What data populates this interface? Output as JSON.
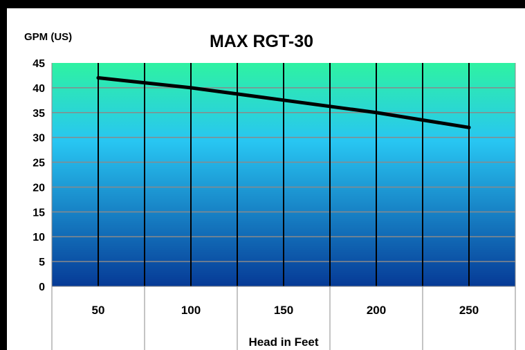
{
  "chart_data": {
    "type": "line",
    "title": "MAX RGT-30",
    "ylabel": "GPM (US)",
    "xlabel": "Head in Feet",
    "x_ticks": [
      "50",
      "100",
      "150",
      "200",
      "250"
    ],
    "y_ticks": [
      "0",
      "5",
      "10",
      "15",
      "20",
      "25",
      "30",
      "35",
      "40",
      "45"
    ],
    "xlim": [
      25,
      275
    ],
    "ylim": [
      0,
      45
    ],
    "grid": true,
    "legend": "none",
    "series": [
      {
        "values": [
          [
            50,
            42
          ],
          [
            100,
            40
          ],
          [
            150,
            37.5
          ],
          [
            200,
            35
          ],
          [
            250,
            32
          ]
        ]
      }
    ],
    "colors": {
      "frame": "#000000",
      "background": "#ffffff",
      "gradient_top": "#2ef2a2",
      "gradient_mid": "#28c6f2",
      "gradient_bottom": "#063a96",
      "line": "#000000",
      "grid_horizontal": "#8a8a8a",
      "grid_vertical": "#000000"
    }
  }
}
